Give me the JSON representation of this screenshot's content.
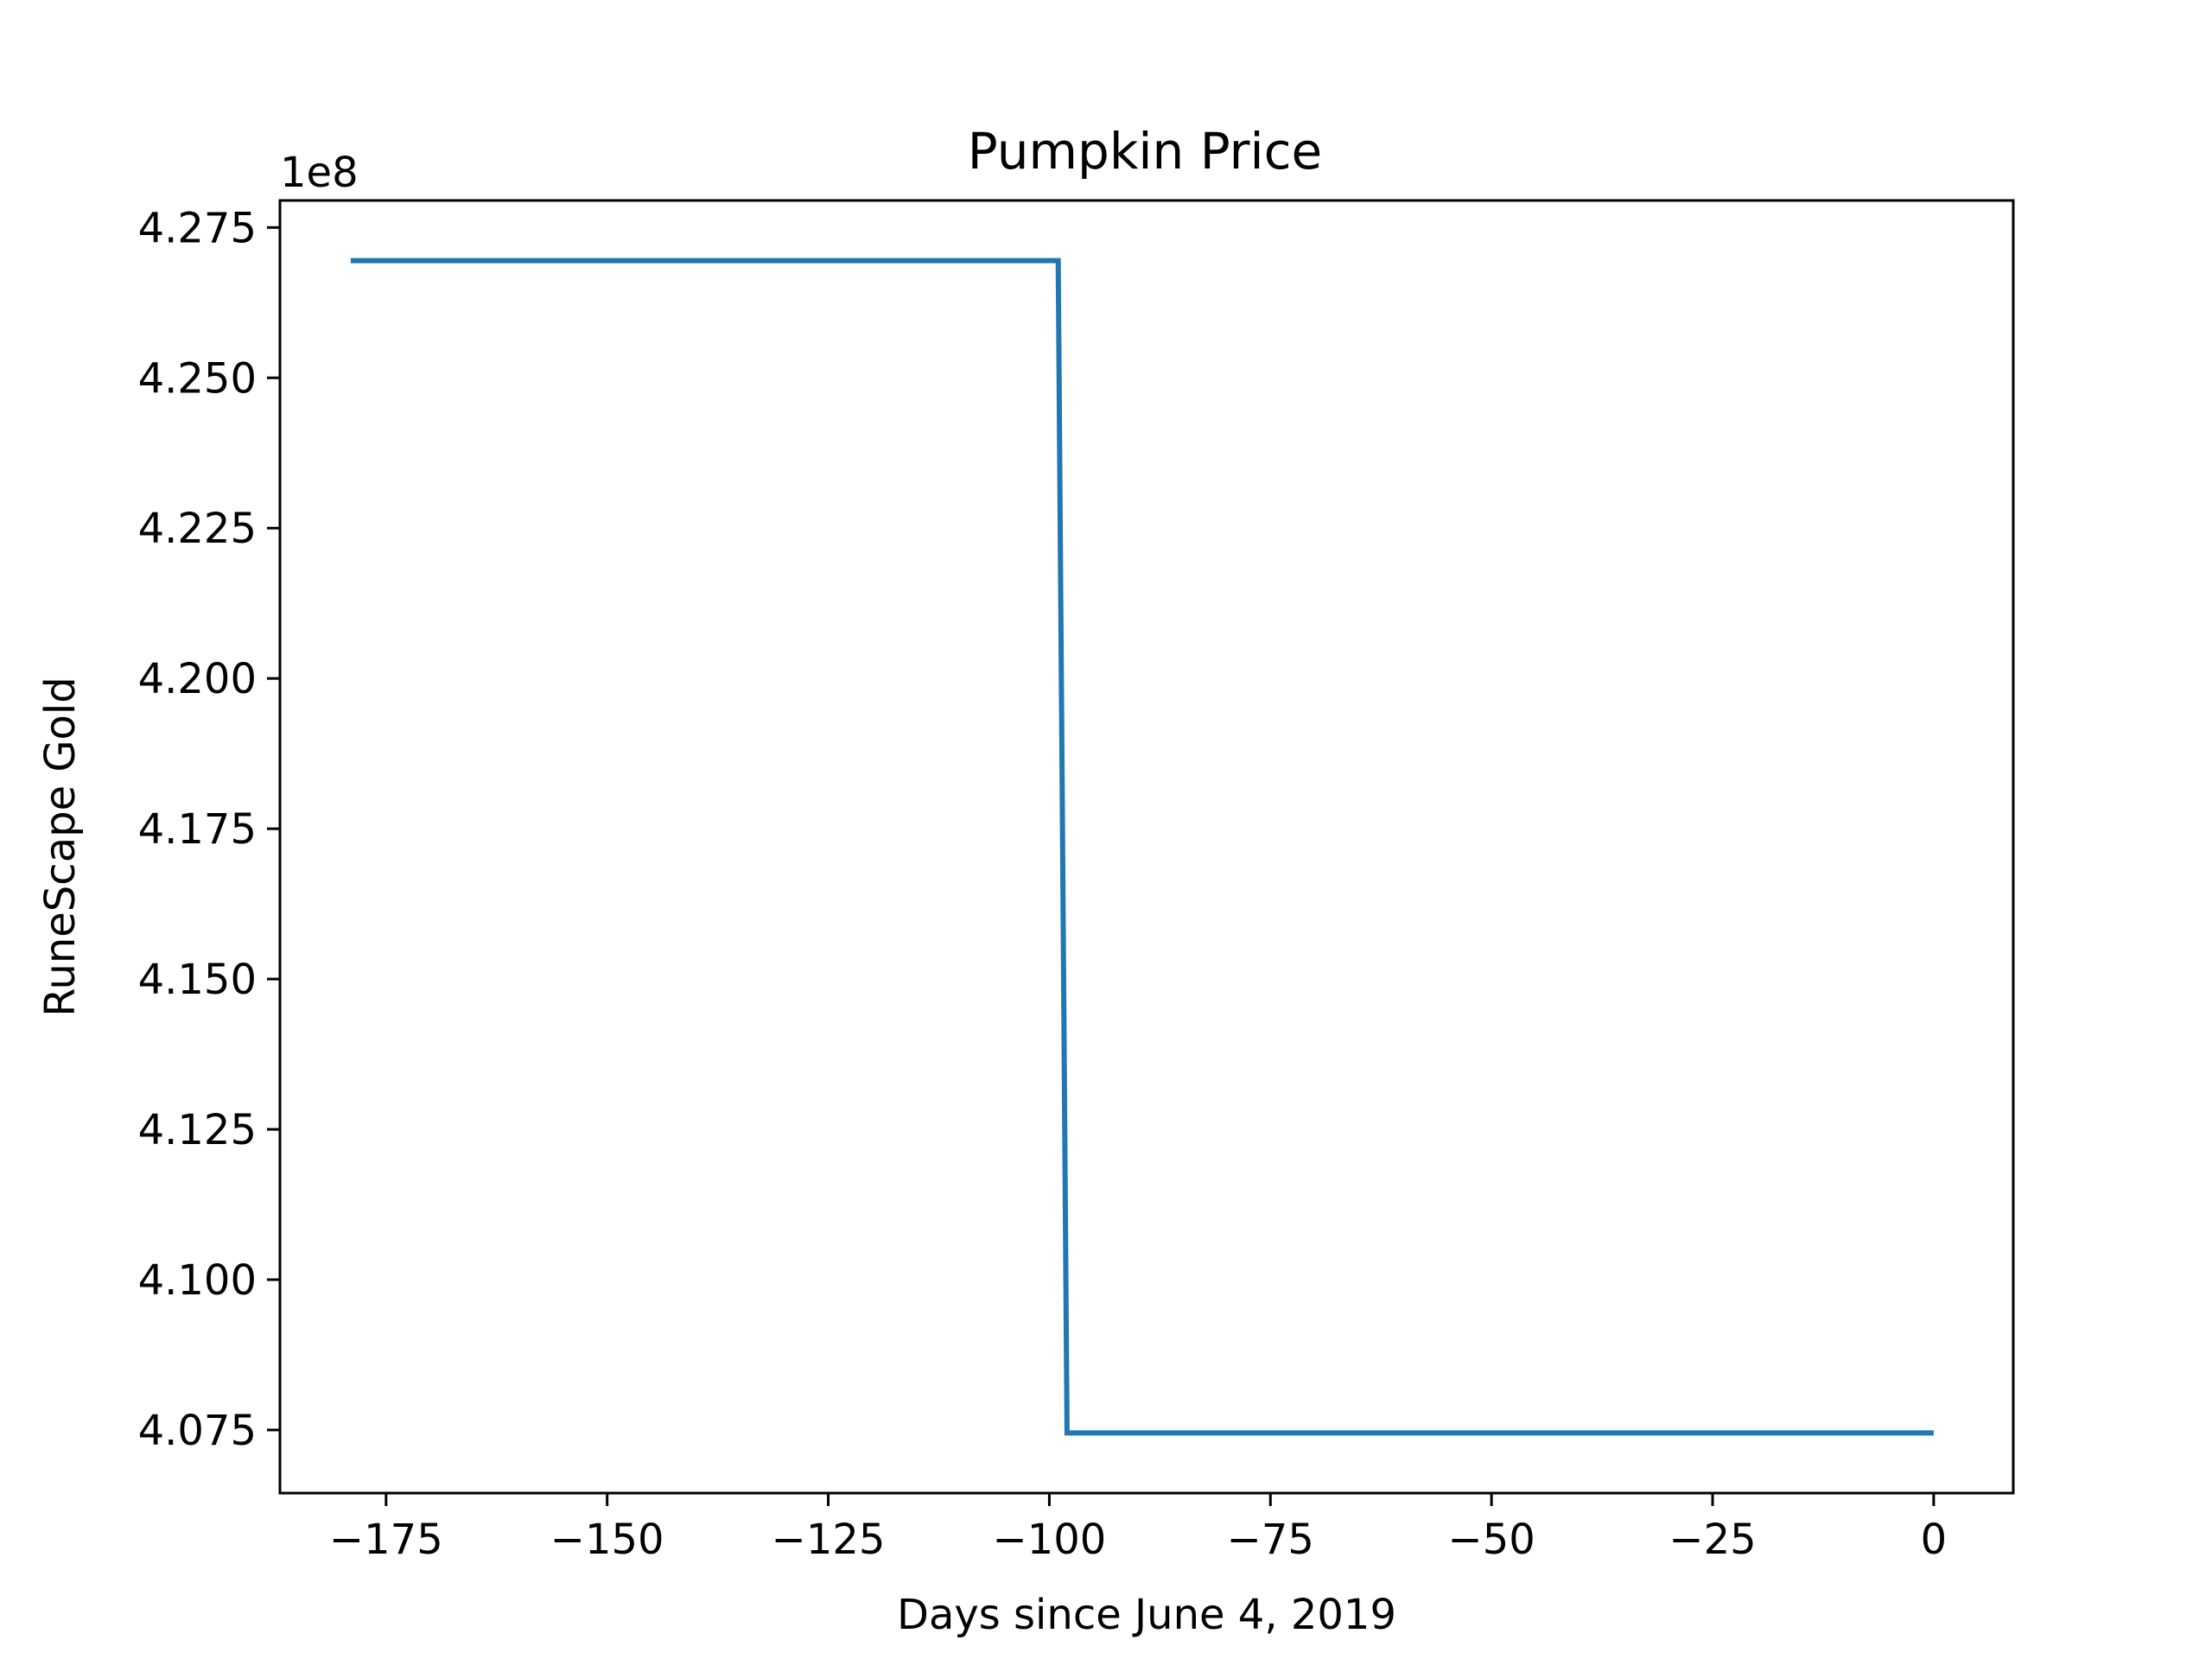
{
  "chart_data": {
    "type": "line",
    "title": "Pumpkin Price",
    "xlabel": "Days since June 4, 2019",
    "ylabel": "RuneScape Gold",
    "y_offset_text": "1e8",
    "xlim": [
      -187,
      9
    ],
    "ylim": [
      4.0645,
      4.2795
    ],
    "x_ticks": [
      {
        "value": -175,
        "label": "−175"
      },
      {
        "value": -150,
        "label": "−150"
      },
      {
        "value": -125,
        "label": "−125"
      },
      {
        "value": -100,
        "label": "−100"
      },
      {
        "value": -75,
        "label": "−75"
      },
      {
        "value": -50,
        "label": "−50"
      },
      {
        "value": -25,
        "label": "−25"
      },
      {
        "value": 0,
        "label": "0"
      }
    ],
    "y_ticks": [
      {
        "value": 4.075,
        "label": "4.075"
      },
      {
        "value": 4.1,
        "label": "4.100"
      },
      {
        "value": 4.125,
        "label": "4.125"
      },
      {
        "value": 4.15,
        "label": "4.150"
      },
      {
        "value": 4.175,
        "label": "4.175"
      },
      {
        "value": 4.2,
        "label": "4.200"
      },
      {
        "value": 4.225,
        "label": "4.225"
      },
      {
        "value": 4.25,
        "label": "4.250"
      },
      {
        "value": 4.275,
        "label": "4.275"
      }
    ],
    "grid": false,
    "series": [
      {
        "color": "#1f77b4",
        "x": [
          -179,
          -99,
          -98,
          0
        ],
        "y": [
          4.2695,
          4.2695,
          4.0745,
          4.0745
        ]
      }
    ]
  }
}
